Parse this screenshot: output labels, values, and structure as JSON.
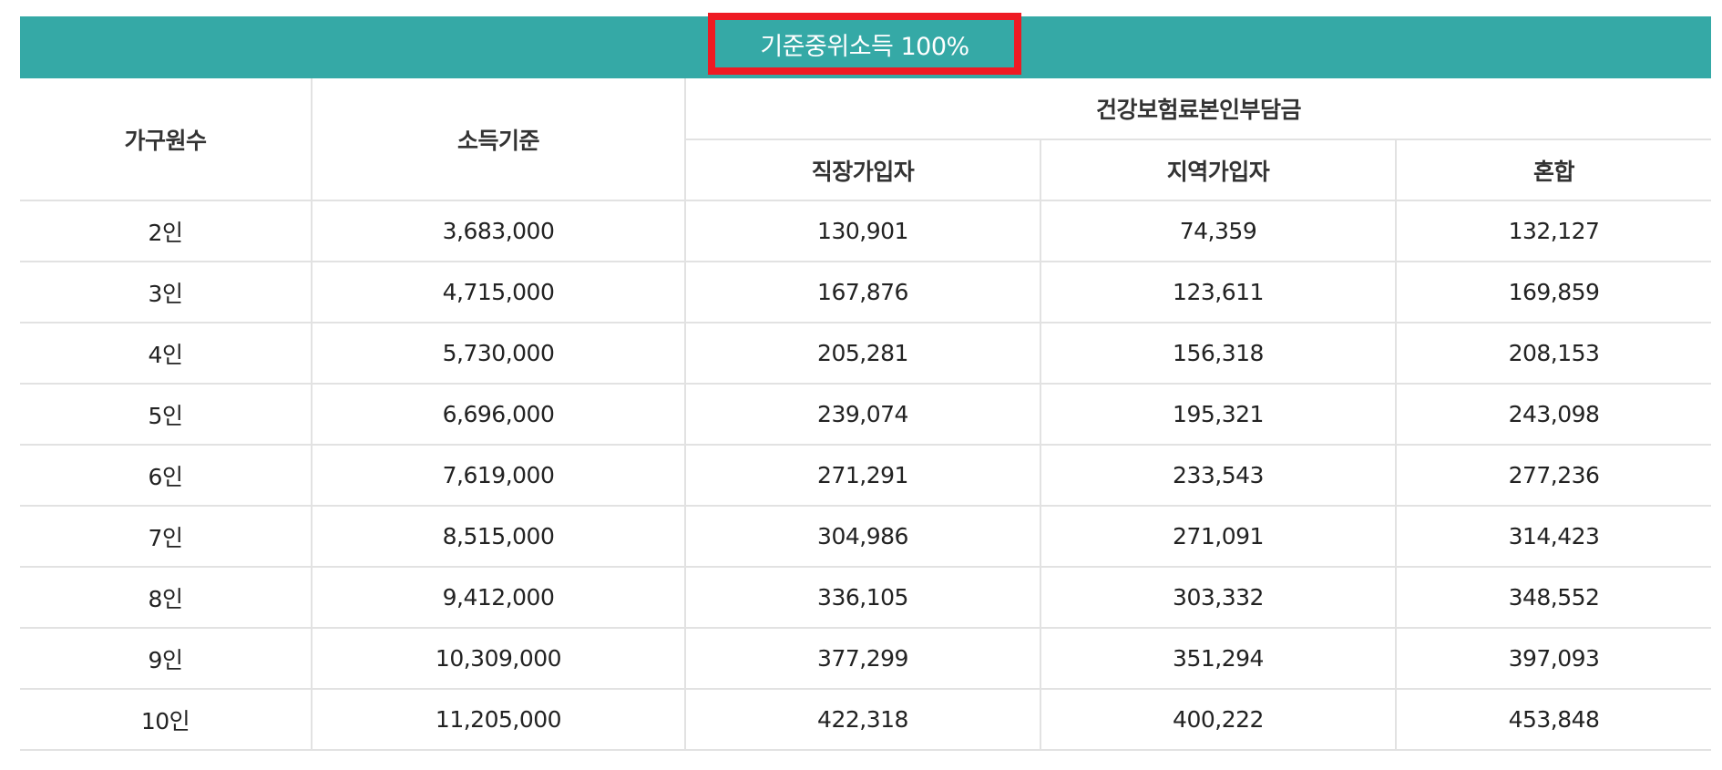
{
  "banner": {
    "title": "기준중위소득 100%"
  },
  "headers": {
    "household": "가구원수",
    "income": "소득기준",
    "insurance_group": "건강보험료본인부담금",
    "employee": "직장가입자",
    "regional": "지역가입자",
    "mixed": "혼합"
  },
  "rows": [
    [
      "2인",
      "3,683,000",
      "130,901",
      "74,359",
      "132,127"
    ],
    [
      "3인",
      "4,715,000",
      "167,876",
      "123,611",
      "169,859"
    ],
    [
      "4인",
      "5,730,000",
      "205,281",
      "156,318",
      "208,153"
    ],
    [
      "5인",
      "6,696,000",
      "239,074",
      "195,321",
      "243,098"
    ],
    [
      "6인",
      "7,619,000",
      "271,291",
      "233,543",
      "277,236"
    ],
    [
      "7인",
      "8,515,000",
      "304,986",
      "271,091",
      "314,423"
    ],
    [
      "8인",
      "9,412,000",
      "336,105",
      "303,332",
      "348,552"
    ],
    [
      "9인",
      "10,309,000",
      "377,299",
      "351,294",
      "397,093"
    ],
    [
      "10인",
      "11,205,000",
      "422,318",
      "400,222",
      "453,848"
    ]
  ],
  "colors": {
    "banner": "#35a9a6",
    "highlight_border": "#ee1b23"
  }
}
